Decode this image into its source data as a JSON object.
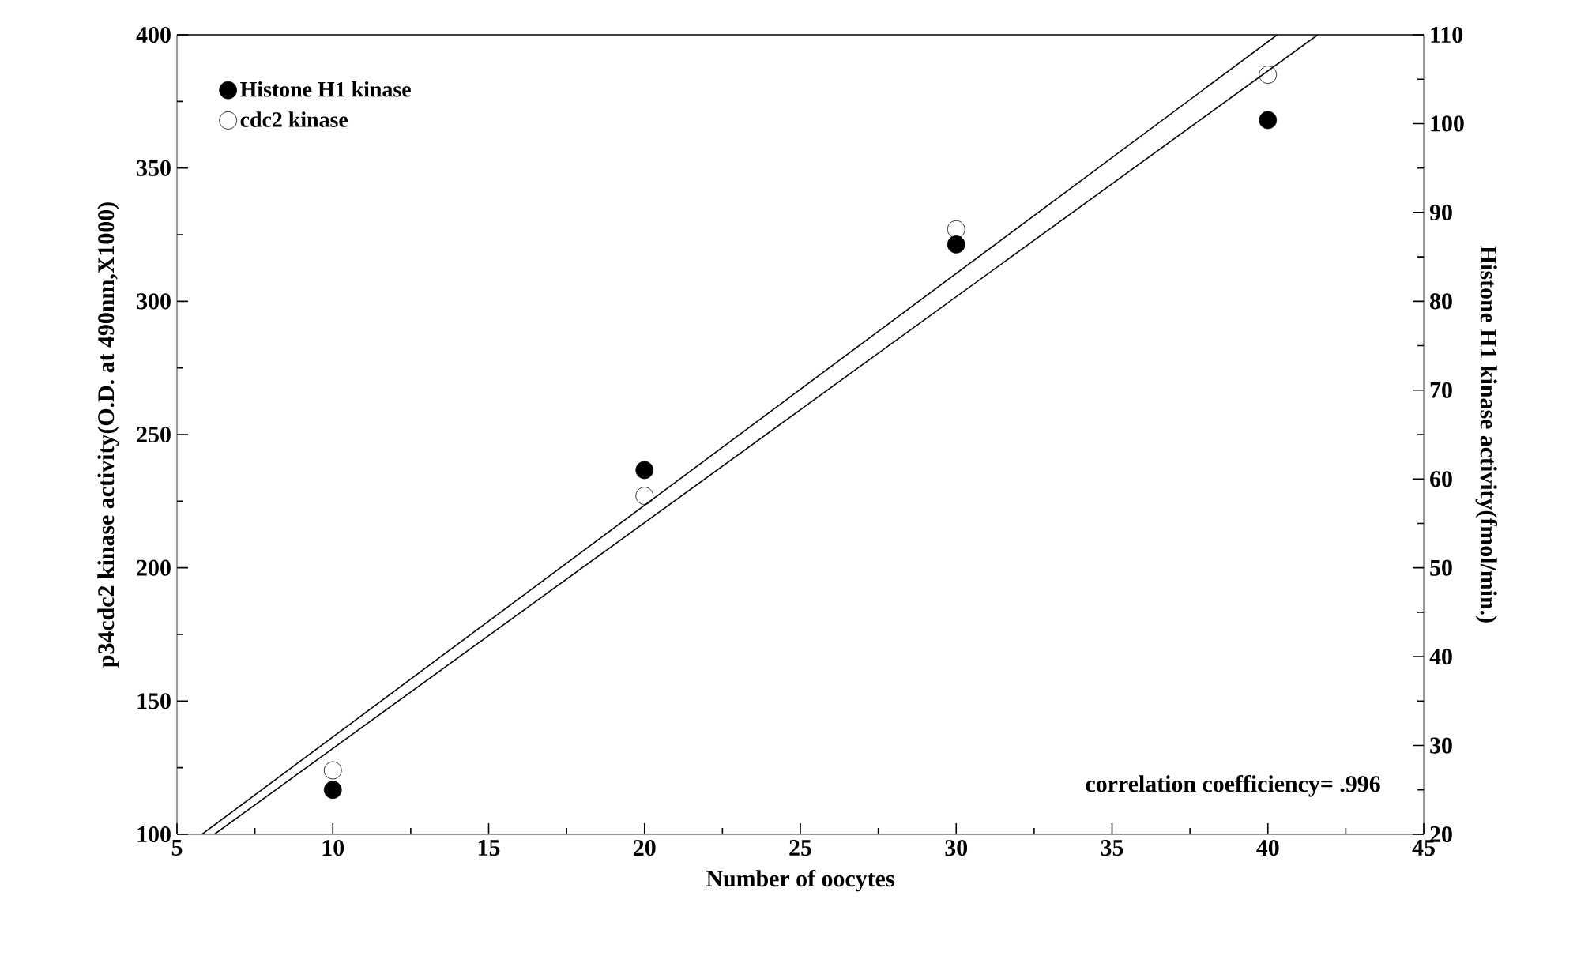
{
  "chart_data": {
    "type": "scatter",
    "xlabel": "Number of oocytes",
    "ylabel": "p34cdc2 kinase activity(O.D. at 490nm,X1000)",
    "y2label": "Histone H1 kinase activity(fmol/min.)",
    "x": [
      10,
      20,
      30,
      40
    ],
    "series": [
      {
        "name": "Histone H1 kinase",
        "color": "#000000",
        "marker": "circle",
        "axis": "y2",
        "values": [
          25,
          61,
          86.4,
          100.4
        ]
      },
      {
        "name": "cdc2  kinase",
        "color": "#000000",
        "marker": "open circle",
        "values": [
          124,
          227,
          327,
          385
        ]
      },
      {
        "type": "line",
        "color": "#000000",
        "axis": "y2",
        "x": [
          5.8,
          40.3
        ],
        "values": [
          20,
          110
        ]
      },
      {
        "type": "line",
        "color": "#000000",
        "x": [
          6.2,
          41.6
        ],
        "values": [
          100,
          400
        ]
      }
    ],
    "xlim": [
      5,
      45
    ],
    "xticks": [
      5,
      10,
      15,
      20,
      25,
      30,
      35,
      40,
      45
    ],
    "ylim": [
      100,
      400
    ],
    "yticks": [
      100,
      150,
      200,
      250,
      300,
      350,
      400
    ],
    "y2lim": [
      20,
      110
    ],
    "y2ticks": [
      20,
      30,
      40,
      50,
      60,
      70,
      80,
      90,
      100,
      110
    ],
    "legend": "top left",
    "grid": false,
    "annotations": [
      "correlation coefficiency= .996"
    ]
  }
}
